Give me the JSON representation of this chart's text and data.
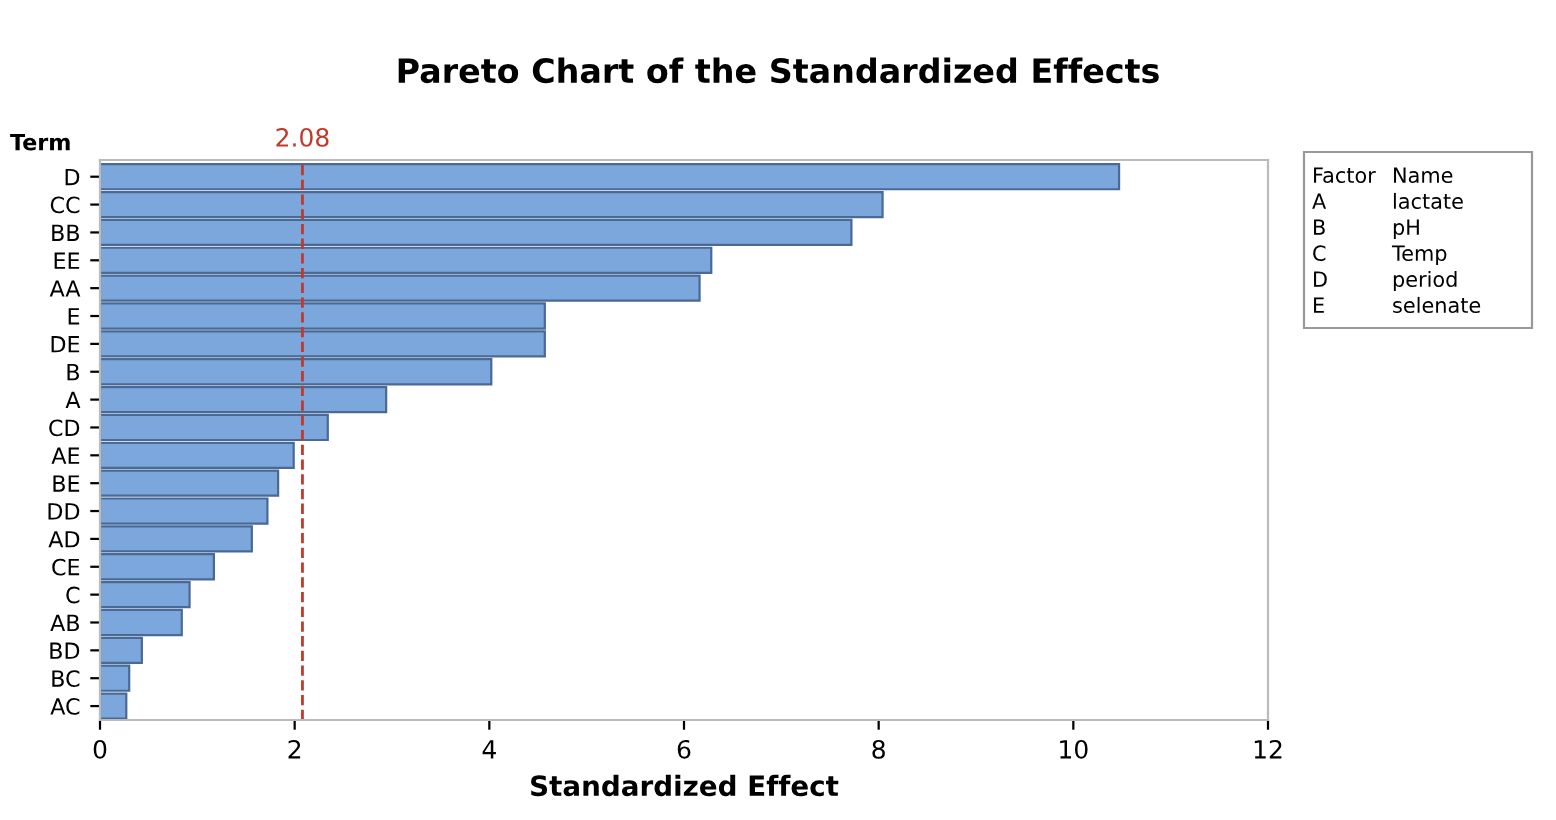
{
  "chart_data": {
    "type": "bar",
    "orientation": "horizontal",
    "title": "Pareto Chart of the Standardized Effects",
    "xlabel": "Standardized Effect",
    "ylabel": "Term",
    "categories": [
      "D",
      "CC",
      "BB",
      "EE",
      "AA",
      "E",
      "DE",
      "B",
      "A",
      "CD",
      "AE",
      "BE",
      "DD",
      "AD",
      "CE",
      "C",
      "AB",
      "BD",
      "BC",
      "AC"
    ],
    "values": [
      10.47,
      8.04,
      7.72,
      6.28,
      6.16,
      4.57,
      4.57,
      4.02,
      2.94,
      2.34,
      1.99,
      1.83,
      1.72,
      1.56,
      1.17,
      0.92,
      0.84,
      0.43,
      0.3,
      0.27
    ],
    "color": "#7ba7dc",
    "xlim": [
      0,
      12
    ],
    "xticks": [
      0,
      2,
      4,
      6,
      8,
      10,
      12
    ],
    "ref_lines": [
      {
        "axis": "x",
        "value": 2.08,
        "label": "2.08",
        "color": "#c0392b",
        "line_style": "dashed"
      }
    ],
    "annotations": [
      "Factor",
      "Name",
      "A",
      "lactate",
      "B",
      "pH",
      "C",
      "Temp",
      "D",
      "period",
      "E",
      "selenate"
    ],
    "grid": false
  }
}
